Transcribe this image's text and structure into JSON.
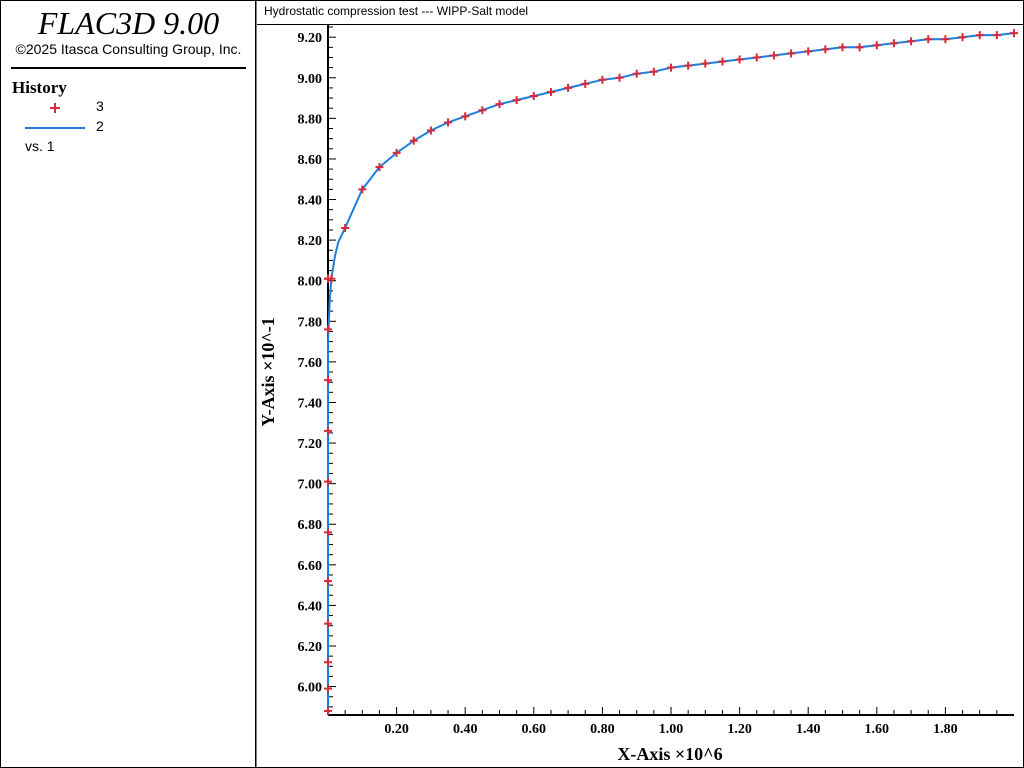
{
  "app": {
    "title": "FLAC3D 9.00",
    "copyright": "©2025 Itasca Consulting Group, Inc."
  },
  "legend": {
    "heading": "History",
    "items": [
      {
        "label": "3",
        "marker": "plus",
        "color": "#d42a3a"
      },
      {
        "label": "2",
        "marker": "line",
        "color": "#1c7fe0"
      }
    ],
    "vs": "vs. 1"
  },
  "chart_data": {
    "type": "line",
    "title": "Hydrostatic compression test --- WIPP-Salt model",
    "xlabel": "X-Axis ×10^6",
    "ylabel": "Y-Axis ×10^-1",
    "xlim": [
      0,
      2.0
    ],
    "ylim": [
      5.86,
      9.26
    ],
    "grid": false,
    "legend_position": "left-panel",
    "x_ticks": [
      0.2,
      0.4,
      0.6,
      0.8,
      1.0,
      1.2,
      1.4,
      1.6,
      1.8
    ],
    "x_tick_labels": [
      "0.20",
      "0.40",
      "0.60",
      "0.80",
      "1.00",
      "1.20",
      "1.40",
      "1.60",
      "1.80"
    ],
    "y_ticks": [
      6.0,
      6.2,
      6.4,
      6.6,
      6.8,
      7.0,
      7.2,
      7.4,
      7.6,
      7.8,
      8.0,
      8.2,
      8.4,
      8.6,
      8.8,
      9.0,
      9.2
    ],
    "y_tick_labels": [
      "6.00",
      "6.20",
      "6.40",
      "6.60",
      "6.80",
      "7.00",
      "7.20",
      "7.40",
      "7.60",
      "7.80",
      "8.00",
      "8.20",
      "8.40",
      "8.60",
      "8.80",
      "9.00",
      "9.20"
    ],
    "series": [
      {
        "name": "3",
        "style": "plus",
        "color": "#d42a3a",
        "x": [
          0.0,
          0.0,
          0.0,
          0.0,
          0.0,
          0.0,
          0.0,
          0.0,
          0.0,
          0.0,
          0.0,
          0.0,
          0.0,
          0.01,
          0.05,
          0.1,
          0.15,
          0.2,
          0.25,
          0.3,
          0.35,
          0.4,
          0.45,
          0.5,
          0.55,
          0.6,
          0.65,
          0.7,
          0.75,
          0.8,
          0.85,
          0.9,
          0.95,
          1.0,
          1.05,
          1.1,
          1.15,
          1.2,
          1.25,
          1.3,
          1.35,
          1.4,
          1.45,
          1.5,
          1.55,
          1.6,
          1.65,
          1.7,
          1.75,
          1.8,
          1.85,
          1.9,
          1.95,
          2.0
        ],
        "y": [
          5.88,
          5.99,
          6.12,
          6.31,
          6.52,
          6.76,
          7.01,
          7.26,
          7.51,
          7.76,
          8.01,
          8.01,
          8.01,
          8.01,
          8.26,
          8.45,
          8.56,
          8.63,
          8.69,
          8.74,
          8.78,
          8.81,
          8.84,
          8.87,
          8.89,
          8.91,
          8.93,
          8.95,
          8.97,
          8.99,
          9.0,
          9.02,
          9.03,
          9.05,
          9.06,
          9.07,
          9.08,
          9.09,
          9.1,
          9.11,
          9.12,
          9.13,
          9.14,
          9.15,
          9.15,
          9.16,
          9.17,
          9.18,
          9.19,
          9.19,
          9.2,
          9.21,
          9.21,
          9.22
        ]
      },
      {
        "name": "2",
        "style": "line",
        "color": "#1c7fe0",
        "x": [
          0.0,
          0.0,
          0.0,
          0.0,
          0.0,
          0.0,
          0.0,
          0.0,
          0.0,
          0.0,
          0.005,
          0.01,
          0.02,
          0.03,
          0.05,
          0.1,
          0.15,
          0.2,
          0.25,
          0.3,
          0.35,
          0.4,
          0.45,
          0.5,
          0.55,
          0.6,
          0.65,
          0.7,
          0.75,
          0.8,
          0.85,
          0.9,
          0.95,
          1.0,
          1.05,
          1.1,
          1.15,
          1.2,
          1.25,
          1.3,
          1.35,
          1.4,
          1.45,
          1.5,
          1.55,
          1.6,
          1.65,
          1.7,
          1.75,
          1.8,
          1.85,
          1.9,
          1.95,
          2.0
        ],
        "y": [
          5.88,
          5.99,
          6.12,
          6.31,
          6.52,
          6.76,
          7.01,
          7.26,
          7.51,
          7.7,
          7.9,
          8.01,
          8.12,
          8.19,
          8.26,
          8.45,
          8.56,
          8.63,
          8.69,
          8.74,
          8.78,
          8.81,
          8.84,
          8.87,
          8.89,
          8.91,
          8.93,
          8.95,
          8.97,
          8.99,
          9.0,
          9.02,
          9.03,
          9.05,
          9.06,
          9.07,
          9.08,
          9.09,
          9.1,
          9.11,
          9.12,
          9.13,
          9.14,
          9.15,
          9.15,
          9.16,
          9.17,
          9.18,
          9.19,
          9.19,
          9.2,
          9.21,
          9.21,
          9.22
        ]
      }
    ]
  }
}
